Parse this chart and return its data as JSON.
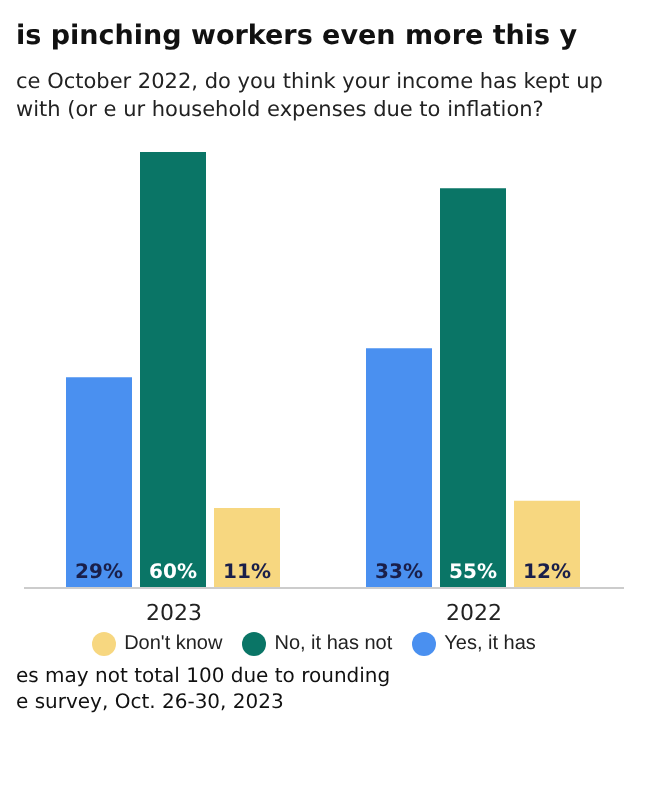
{
  "chart_data": {
    "type": "bar",
    "title": "is pinching workers even more this y",
    "subtitle": "ce October 2022, do you think your income has kept up with (or e ur household expenses due to inflation?",
    "categories": [
      "2023",
      "2022"
    ],
    "series": [
      {
        "name": "Yes, it has",
        "color": "#4a90f0",
        "values": [
          29,
          33
        ],
        "value_labels": [
          "29%",
          "33%"
        ]
      },
      {
        "name": "No, it has not",
        "color": "#0a7566",
        "values": [
          60,
          55
        ],
        "value_labels": [
          "60%",
          "55%"
        ]
      },
      {
        "name": "Don't know",
        "color": "#f7d780",
        "values": [
          11,
          12
        ],
        "value_labels": [
          "11%",
          "12%"
        ]
      }
    ],
    "legend": "bottom",
    "annotations": [
      "es may not total 100 due to rounding",
      "e survey, Oct. 26-30, 2023"
    ]
  }
}
